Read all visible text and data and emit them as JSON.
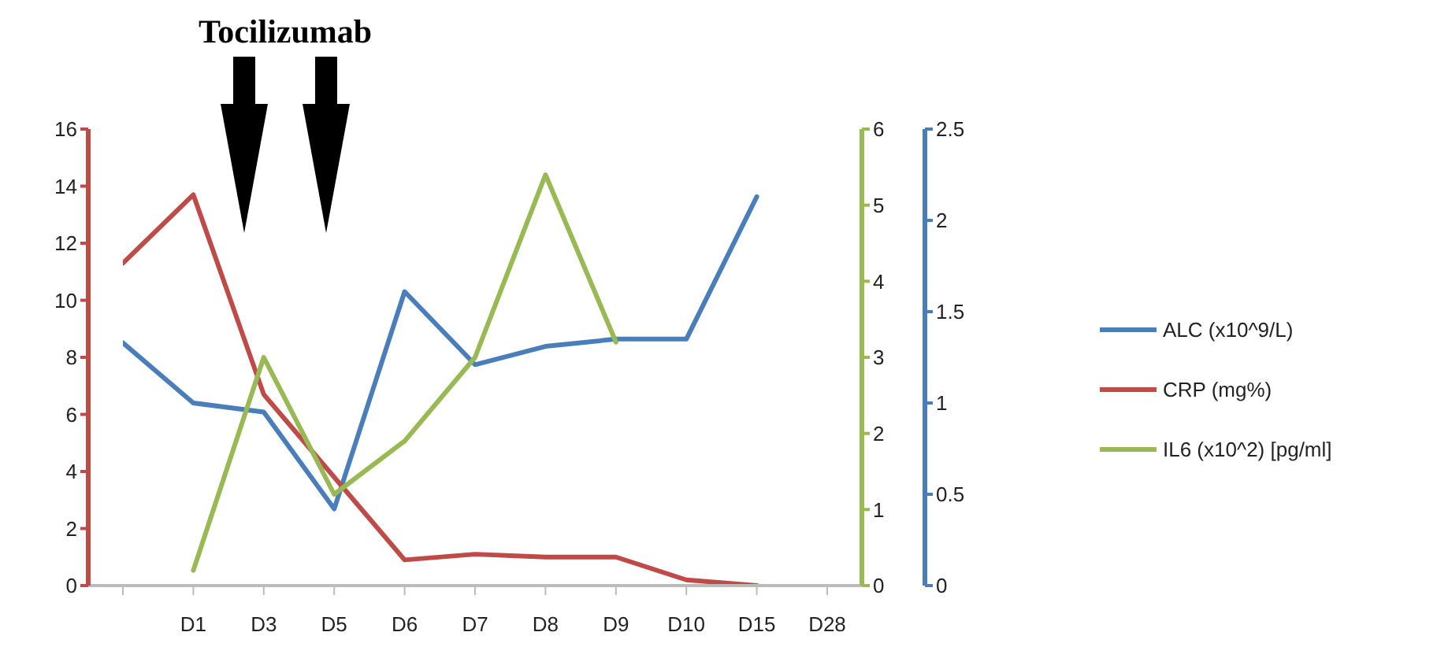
{
  "chart_data": {
    "type": "line",
    "annotations": [
      "Tocilizumab"
    ],
    "categories": [
      null,
      "D1",
      "D3",
      "D5",
      "D6",
      "D7",
      "D8",
      "D9",
      "D10",
      "D15",
      "D28"
    ],
    "ylim": [
      0,
      16
    ],
    "yticks": [
      0,
      2,
      4,
      6,
      8,
      10,
      12,
      14,
      16
    ],
    "y2lim": [
      0,
      6
    ],
    "y2ticks": [
      0,
      1,
      2,
      3,
      4,
      5,
      6
    ],
    "y3lim": [
      0,
      2.5
    ],
    "y3ticks": [
      0,
      0.5,
      1,
      1.5,
      2,
      2.5
    ],
    "grid": false,
    "legend": "right",
    "series": [
      {
        "name": "ALC (x10^9/L)",
        "color": "#4a7ebb",
        "axis": "y3",
        "values": [
          1.33,
          1.0,
          0.95,
          0.42,
          1.61,
          1.21,
          1.31,
          1.35,
          1.35,
          2.13,
          null
        ]
      },
      {
        "name": "CRP (mg%)",
        "color": "#be4b48",
        "values": [
          11.3,
          13.7,
          6.7,
          3.8,
          0.9,
          1.1,
          1.0,
          1.0,
          0.2,
          0,
          null
        ]
      },
      {
        "name": "IL6 (x10^2) [pg/ml]",
        "color": "#98b954",
        "axis": "y2",
        "values": [
          null,
          0.2,
          3.0,
          1.2,
          1.9,
          3.0,
          5.4,
          3.2,
          null,
          null,
          null
        ]
      }
    ]
  }
}
